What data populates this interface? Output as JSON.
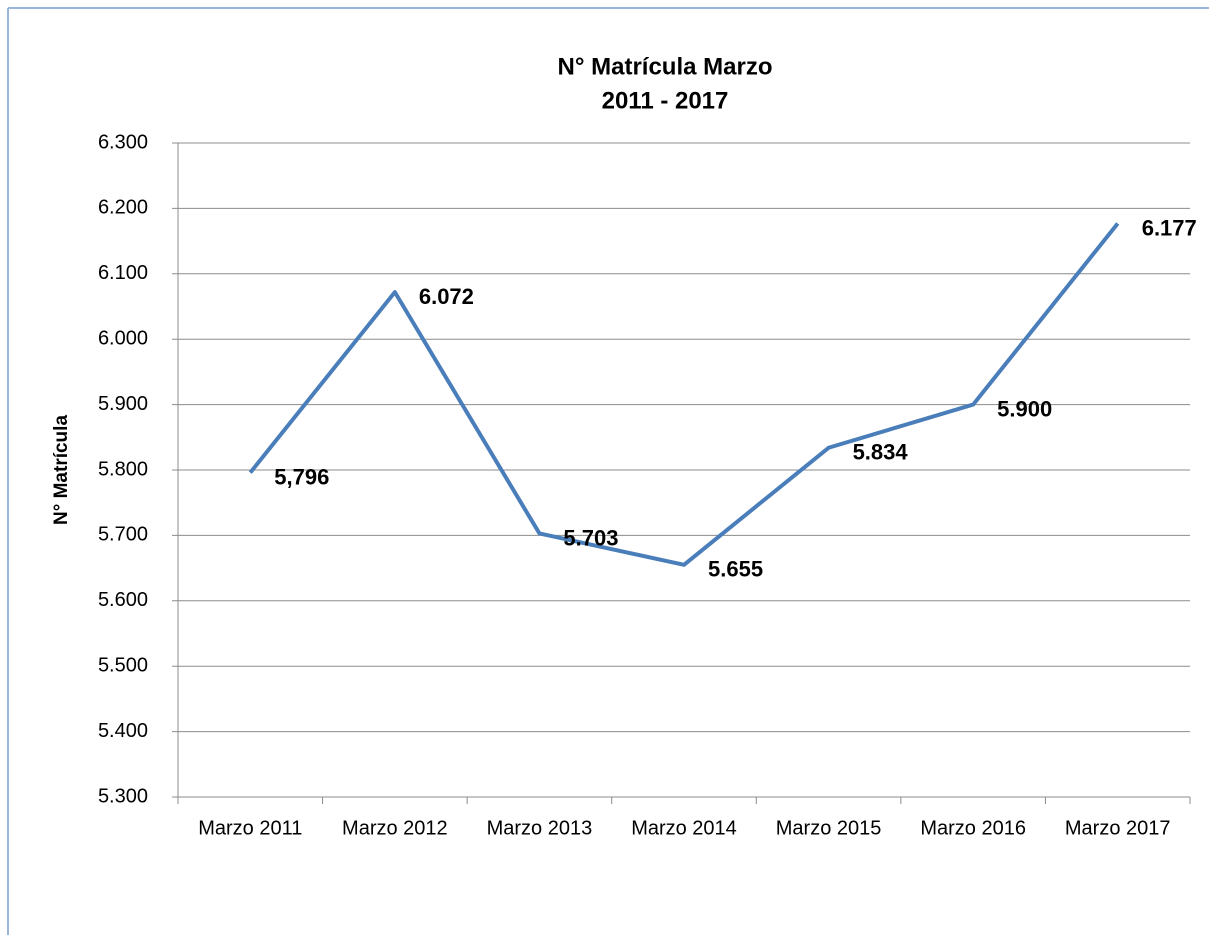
{
  "chart_data": {
    "type": "line",
    "title": "N° Matrícula  Marzo",
    "subtitle": "2011 - 2017",
    "y_label": "N° Matrícula",
    "categories": [
      "Marzo 2011",
      "Marzo 2012",
      "Marzo 2013",
      "Marzo 2014",
      "Marzo 2015",
      "Marzo 2016",
      "Marzo 2017"
    ],
    "series": [
      {
        "name": "N° Matrícula",
        "color": "#4a7ebb",
        "values": [
          5796,
          6072,
          5703,
          5655,
          5834,
          5900,
          6177
        ],
        "value_labels": [
          "5,796",
          "6.072",
          "5.703",
          "5.655",
          "5.834",
          "5.900",
          "6.177"
        ]
      }
    ],
    "ylim": [
      5300,
      6300
    ],
    "yticks": [
      {
        "value": 5300,
        "label": "5.300"
      },
      {
        "value": 5400,
        "label": "5.400"
      },
      {
        "value": 5500,
        "label": "5.500"
      },
      {
        "value": 5600,
        "label": "5.600"
      },
      {
        "value": 5700,
        "label": "5.700"
      },
      {
        "value": 5800,
        "label": "5.800"
      },
      {
        "value": 5900,
        "label": "5.900"
      },
      {
        "value": 6000,
        "label": "6.000"
      },
      {
        "value": 6100,
        "label": "6.100"
      },
      {
        "value": 6200,
        "label": "6.200"
      },
      {
        "value": 6300,
        "label": "6.300"
      }
    ],
    "grid": true
  }
}
